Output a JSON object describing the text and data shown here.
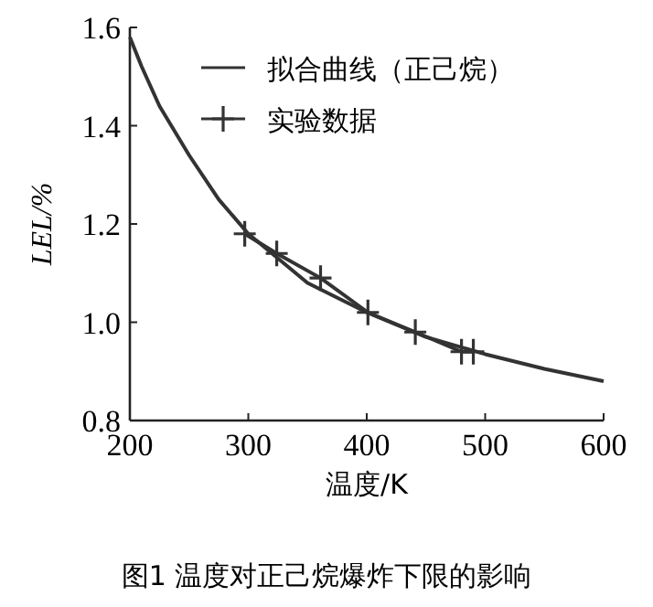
{
  "chart_data": {
    "type": "line",
    "xlabel": "温度/K",
    "ylabel": "LEL/%",
    "legend": "top",
    "xlim": [
      200,
      600
    ],
    "xticks": [
      200,
      300,
      400,
      500,
      600
    ],
    "ylim": [
      0.8,
      1.6
    ],
    "yticks": [
      {
        "value": 0.8,
        "label": "0.8"
      },
      {
        "value": 1.0,
        "label": "1.0"
      },
      {
        "value": 1.2,
        "label": "1.2"
      },
      {
        "value": 1.4,
        "label": "1.4"
      },
      {
        "value": 1.6,
        "label": "1.6"
      }
    ],
    "grid": false,
    "series": [
      {
        "name": "拟合曲线（正己烷）",
        "color": "#333333",
        "marker": "none",
        "x": [
          200,
          210,
          225,
          250,
          275,
          300,
          350,
          400,
          450,
          500,
          550,
          600
        ],
        "values": [
          1.58,
          1.52,
          1.44,
          1.34,
          1.25,
          1.18,
          1.08,
          1.02,
          0.97,
          0.935,
          0.905,
          0.88
        ]
      },
      {
        "name": "实验数据",
        "color": "#333333",
        "marker": "cross",
        "x": [
          297,
          324,
          361,
          401,
          441,
          480,
          490
        ],
        "values": [
          1.18,
          1.14,
          1.09,
          1.02,
          0.98,
          0.94,
          0.94
        ]
      }
    ],
    "annotations": [
      "图1 温度对正己烷爆炸下限的影响"
    ]
  }
}
